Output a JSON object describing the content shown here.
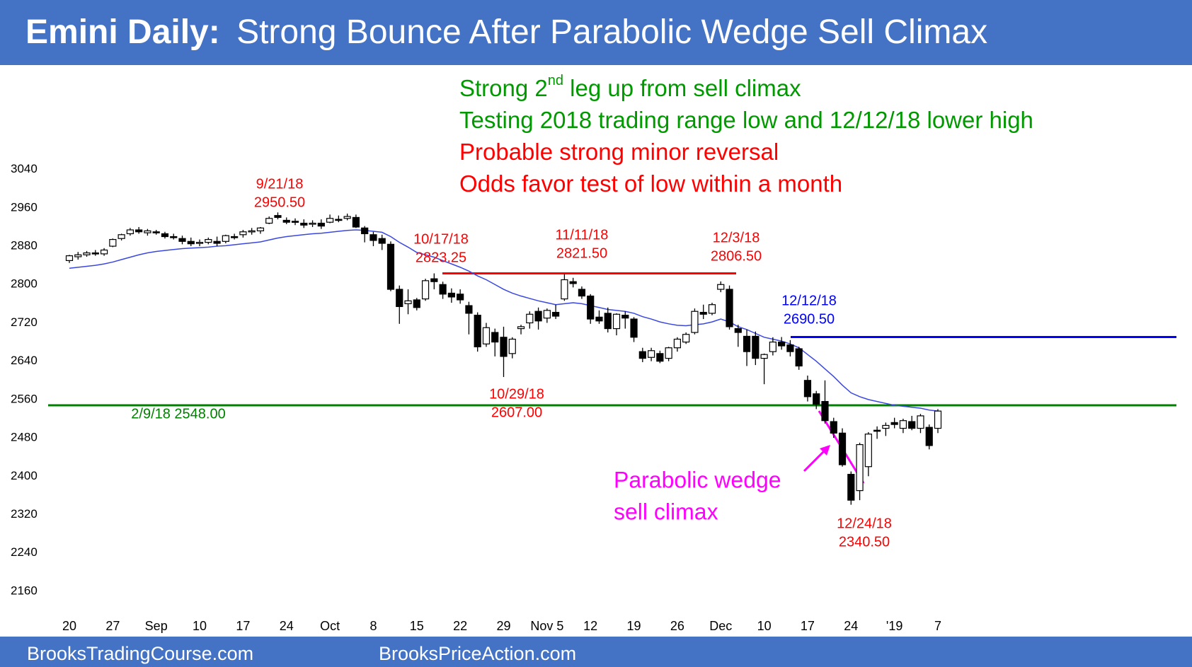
{
  "header": {
    "title_bold": "Emini Daily:",
    "title": "Strong Bounce After Parabolic Wedge Sell Climax",
    "color": "#4472c4"
  },
  "footer": {
    "left": "BrooksTradingCourse.com",
    "right": "BrooksPriceAction.com",
    "color": "#4472c4"
  },
  "chart_data": {
    "type": "candlestick",
    "categories": [
      "20",
      null,
      null,
      null,
      null,
      "27",
      null,
      null,
      null,
      null,
      "Sep",
      null,
      null,
      null,
      null,
      "10",
      null,
      null,
      null,
      null,
      "17",
      null,
      null,
      null,
      null,
      "24",
      null,
      null,
      null,
      null,
      "Oct",
      null,
      null,
      null,
      null,
      "8",
      null,
      null,
      null,
      null,
      "15",
      null,
      null,
      null,
      null,
      "22",
      null,
      null,
      null,
      null,
      "29",
      null,
      null,
      null,
      null,
      "Nov 5",
      null,
      null,
      null,
      null,
      "12",
      null,
      null,
      null,
      null,
      "19",
      null,
      null,
      null,
      null,
      "26",
      null,
      null,
      null,
      null,
      "Dec",
      null,
      null,
      null,
      null,
      "10",
      null,
      null,
      null,
      null,
      "17",
      null,
      null,
      null,
      null,
      "24",
      null,
      null,
      null,
      null,
      "'19",
      null,
      null,
      null,
      null,
      "7"
    ],
    "open": [
      2850,
      2858,
      2862,
      2866,
      2864,
      2880,
      2896,
      2906,
      2914,
      2908,
      2910,
      2906,
      2900,
      2896,
      2890,
      2886,
      2888,
      2890,
      2890,
      2900,
      2904,
      2910,
      2912,
      2928,
      2944,
      2934,
      2932,
      2928,
      2926,
      2928,
      2930,
      2936,
      2938,
      2940,
      2918,
      2904,
      2896,
      2884,
      2790,
      2760,
      2768,
      2770,
      2812,
      2800,
      2782,
      2780,
      2756,
      2736,
      2676,
      2700,
      2690,
      2656,
      2708,
      2720,
      2744,
      2730,
      2742,
      2770,
      2806,
      2790,
      2776,
      2732,
      2740,
      2708,
      2736,
      2728,
      2660,
      2648,
      2656,
      2646,
      2668,
      2680,
      2700,
      2742,
      2740,
      2790,
      2790,
      2708,
      2692,
      2692,
      2646,
      2660,
      2680,
      2674,
      2666,
      2600,
      2572,
      2556,
      2514,
      2490,
      2404,
      2370,
      2420,
      2496,
      2500,
      2512,
      2500,
      2514,
      2500,
      2502,
      2500
    ],
    "high": [
      2862,
      2868,
      2870,
      2872,
      2876,
      2896,
      2906,
      2918,
      2920,
      2916,
      2914,
      2910,
      2906,
      2902,
      2898,
      2894,
      2898,
      2900,
      2904,
      2906,
      2914,
      2918,
      2920,
      2942,
      2950.5,
      2940,
      2938,
      2936,
      2934,
      2936,
      2946,
      2944,
      2948,
      2946,
      2922,
      2910,
      2904,
      2890,
      2798,
      2790,
      2772,
      2812,
      2823.25,
      2806,
      2792,
      2790,
      2764,
      2742,
      2720,
      2708,
      2712,
      2690,
      2716,
      2744,
      2752,
      2750,
      2758,
      2821.5,
      2814,
      2796,
      2780,
      2746,
      2752,
      2740,
      2744,
      2732,
      2668,
      2668,
      2662,
      2670,
      2690,
      2700,
      2750,
      2758,
      2762,
      2806.5,
      2798,
      2716,
      2706,
      2702,
      2656,
      2690,
      2690.5,
      2684,
      2670,
      2610,
      2578,
      2600,
      2522,
      2500,
      2410,
      2470,
      2492,
      2504,
      2512,
      2522,
      2520,
      2526,
      2530,
      2508,
      2540
    ],
    "low": [
      2845,
      2852,
      2858,
      2860,
      2860,
      2878,
      2892,
      2902,
      2906,
      2902,
      2904,
      2896,
      2894,
      2884,
      2880,
      2880,
      2884,
      2880,
      2886,
      2894,
      2898,
      2904,
      2906,
      2926,
      2936,
      2926,
      2924,
      2918,
      2920,
      2916,
      2928,
      2930,
      2934,
      2918,
      2888,
      2880,
      2872,
      2786,
      2718,
      2738,
      2746,
      2766,
      2790,
      2770,
      2762,
      2760,
      2696,
      2660,
      2670,
      2650,
      2607,
      2646,
      2696,
      2708,
      2706,
      2720,
      2728,
      2766,
      2794,
      2770,
      2718,
      2718,
      2700,
      2694,
      2708,
      2680,
      2638,
      2640,
      2636,
      2640,
      2660,
      2676,
      2696,
      2728,
      2736,
      2784,
      2706,
      2670,
      2630,
      2632,
      2592,
      2652,
      2664,
      2650,
      2622,
      2556,
      2540,
      2510,
      2480,
      2420,
      2340.5,
      2350,
      2400,
      2478,
      2484,
      2500,
      2490,
      2496,
      2490,
      2456,
      2490
    ],
    "close": [
      2860,
      2862,
      2866,
      2865,
      2872,
      2894,
      2904,
      2914,
      2910,
      2912,
      2908,
      2900,
      2898,
      2890,
      2885,
      2888,
      2894,
      2886,
      2902,
      2898,
      2910,
      2912,
      2918,
      2938,
      2940,
      2930,
      2930,
      2924,
      2928,
      2922,
      2938,
      2934,
      2942,
      2920,
      2906,
      2892,
      2886,
      2790,
      2754,
      2766,
      2752,
      2808,
      2806,
      2780,
      2774,
      2768,
      2740,
      2670,
      2710,
      2680,
      2650,
      2686,
      2712,
      2738,
      2724,
      2746,
      2734,
      2810,
      2802,
      2776,
      2728,
      2724,
      2708,
      2738,
      2730,
      2690,
      2646,
      2662,
      2640,
      2668,
      2686,
      2696,
      2744,
      2738,
      2758,
      2800,
      2712,
      2700,
      2660,
      2646,
      2654,
      2680,
      2672,
      2660,
      2630,
      2566,
      2550,
      2516,
      2490,
      2424,
      2350,
      2466,
      2488,
      2494,
      2506,
      2508,
      2516,
      2500,
      2526,
      2464,
      2536
    ],
    "up_color": "#ffffff",
    "down_color": "#000000",
    "moving_average": {
      "color": "#3a48e0",
      "values": [
        2834,
        2836,
        2838,
        2840,
        2843,
        2847,
        2852,
        2857,
        2862,
        2866,
        2869,
        2871,
        2873,
        2875,
        2876,
        2877,
        2878,
        2880,
        2881,
        2883,
        2885,
        2887,
        2889,
        2893,
        2897,
        2900,
        2902,
        2904,
        2906,
        2907,
        2909,
        2911,
        2913,
        2914,
        2913,
        2911,
        2909,
        2900,
        2888,
        2878,
        2867,
        2862,
        2857,
        2850,
        2843,
        2836,
        2828,
        2818,
        2810,
        2800,
        2790,
        2782,
        2776,
        2771,
        2766,
        2762,
        2758,
        2760,
        2762,
        2760,
        2756,
        2752,
        2748,
        2746,
        2744,
        2740,
        2733,
        2728,
        2722,
        2718,
        2715,
        2714,
        2716,
        2718,
        2722,
        2728,
        2722,
        2712,
        2706,
        2698,
        2690,
        2686,
        2682,
        2676,
        2668,
        2654,
        2640,
        2624,
        2608,
        2590,
        2574,
        2566,
        2560,
        2556,
        2552,
        2548,
        2546,
        2544,
        2542,
        2538,
        2536
      ]
    },
    "ylim": [
      2120,
      3100
    ],
    "yticks": [
      3040,
      2960,
      2880,
      2800,
      2720,
      2640,
      2560,
      2480,
      2400,
      2320,
      2240,
      2160
    ],
    "grid": false,
    "levels": [
      {
        "value": 2823.25,
        "color": "#ff0000"
      },
      {
        "value": 2548,
        "color": "#008000"
      },
      {
        "value": 2690.5,
        "color": "#0000ff"
      }
    ],
    "annotations": [
      {
        "lines": [
          "9/21/18",
          "2950.50"
        ],
        "color": "#ff0000"
      },
      {
        "lines": [
          "10/17/18",
          "2823.25"
        ],
        "color": "#ff0000"
      },
      {
        "lines": [
          "11/11/18",
          "2821.50"
        ],
        "color": "#ff0000"
      },
      {
        "lines": [
          "12/3/18",
          "2806.50"
        ],
        "color": "#ff0000"
      },
      {
        "lines": [
          "12/12/18",
          "2690.50"
        ],
        "color": "#0000ff"
      },
      {
        "lines": [
          "10/29/18",
          "2607.00"
        ],
        "color": "#ff0000"
      },
      {
        "lines": [
          "2/9/18 2548.00"
        ],
        "color": "#008000"
      },
      {
        "lines": [
          "12/24/18",
          "2340.50"
        ],
        "color": "#ff0000"
      },
      {
        "lines": [
          "Parabolic wedge",
          "sell climax"
        ],
        "color": "#ff00ff"
      }
    ],
    "notes": [
      {
        "parts": [
          "Strong 2",
          "nd",
          " leg up from sell climax"
        ],
        "color": "#009900"
      },
      {
        "parts": [
          "Testing 2018 trading range low and 12/12/18 lower high"
        ],
        "color": "#009900"
      },
      {
        "parts": [
          "Probable strong minor reversal"
        ],
        "color": "#ff0000"
      },
      {
        "parts": [
          "Odds favor test of low within a month"
        ],
        "color": "#ff0000"
      }
    ]
  }
}
